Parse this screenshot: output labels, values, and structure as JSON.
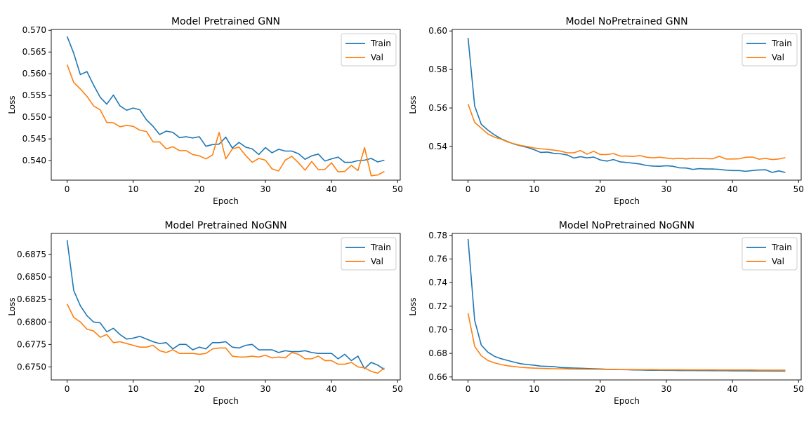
{
  "chart_data": [
    {
      "type": "line",
      "title": "Model Pretrained GNN",
      "xlabel": "Epoch",
      "ylabel": "Loss",
      "xlim": [
        -2.4,
        50.4
      ],
      "ylim": [
        0.5355,
        0.5702
      ],
      "xticks": [
        0,
        10,
        20,
        30,
        40,
        50
      ],
      "yticks": [
        0.54,
        0.545,
        0.55,
        0.555,
        0.56,
        0.565,
        0.57
      ],
      "yticklabels": [
        "0.540",
        "0.545",
        "0.550",
        "0.555",
        "0.560",
        "0.565",
        "0.570"
      ],
      "legend_position": "upper-right",
      "series": [
        {
          "name": "Train",
          "color": "#1f77b4",
          "values": [
            0.5686,
            0.5647,
            0.5598,
            0.5605,
            0.5574,
            0.5546,
            0.553,
            0.5551,
            0.5526,
            0.5516,
            0.5521,
            0.5517,
            0.5494,
            0.5479,
            0.546,
            0.5468,
            0.5465,
            0.5453,
            0.5455,
            0.5452,
            0.5455,
            0.5433,
            0.5437,
            0.5438,
            0.5454,
            0.5429,
            0.5442,
            0.5431,
            0.5427,
            0.5414,
            0.543,
            0.5418,
            0.5426,
            0.5422,
            0.5422,
            0.5416,
            0.5403,
            0.5411,
            0.5415,
            0.5399,
            0.5404,
            0.5408,
            0.5396,
            0.5396,
            0.54,
            0.5401,
            0.5405,
            0.5397,
            0.5401
          ]
        },
        {
          "name": "Val",
          "color": "#ff7f0e",
          "values": [
            0.5621,
            0.558,
            0.5565,
            0.5548,
            0.5526,
            0.5517,
            0.5488,
            0.5487,
            0.5478,
            0.5481,
            0.5479,
            0.547,
            0.5467,
            0.5443,
            0.5443,
            0.5427,
            0.5432,
            0.5423,
            0.5423,
            0.5414,
            0.5411,
            0.5404,
            0.5413,
            0.5465,
            0.5404,
            0.5427,
            0.5431,
            0.5412,
            0.5396,
            0.5405,
            0.5401,
            0.5381,
            0.5376,
            0.5401,
            0.541,
            0.5395,
            0.5378,
            0.5398,
            0.5379,
            0.538,
            0.5395,
            0.5374,
            0.5375,
            0.5389,
            0.5377,
            0.543,
            0.5365,
            0.5367,
            0.5375
          ]
        }
      ]
    },
    {
      "type": "line",
      "title": "Model NoPretrained GNN",
      "xlabel": "Epoch",
      "ylabel": "Loss",
      "xlim": [
        -2.4,
        50.4
      ],
      "ylim": [
        0.5225,
        0.6008
      ],
      "xticks": [
        0,
        10,
        20,
        30,
        40,
        50
      ],
      "yticks": [
        0.54,
        0.56,
        0.58,
        0.6
      ],
      "yticklabels": [
        "0.54",
        "0.56",
        "0.58",
        "0.60"
      ],
      "legend_position": "upper-right",
      "series": [
        {
          "name": "Train",
          "color": "#1f77b4",
          "values": [
            0.5964,
            0.561,
            0.5515,
            0.5485,
            0.546,
            0.544,
            0.5425,
            0.5412,
            0.5403,
            0.5395,
            0.5383,
            0.5369,
            0.5371,
            0.5364,
            0.5362,
            0.5356,
            0.534,
            0.5347,
            0.5341,
            0.5345,
            0.533,
            0.5324,
            0.5332,
            0.532,
            0.5317,
            0.5313,
            0.5309,
            0.5301,
            0.5298,
            0.5297,
            0.53,
            0.5297,
            0.5289,
            0.5288,
            0.5281,
            0.5285,
            0.5283,
            0.5283,
            0.5281,
            0.5277,
            0.5275,
            0.5275,
            0.5271,
            0.5275,
            0.5278,
            0.5279,
            0.5265,
            0.5273,
            0.5265
          ]
        },
        {
          "name": "Val",
          "color": "#ff7f0e",
          "values": [
            0.562,
            0.5525,
            0.5495,
            0.5465,
            0.5448,
            0.5438,
            0.5423,
            0.5414,
            0.5405,
            0.5399,
            0.5392,
            0.5388,
            0.5385,
            0.5381,
            0.5376,
            0.5367,
            0.5367,
            0.5379,
            0.536,
            0.5375,
            0.5358,
            0.5358,
            0.5363,
            0.535,
            0.535,
            0.5348,
            0.5353,
            0.5344,
            0.5341,
            0.5344,
            0.534,
            0.5336,
            0.5339,
            0.5335,
            0.5339,
            0.5337,
            0.5337,
            0.5336,
            0.5349,
            0.5335,
            0.5335,
            0.5336,
            0.5344,
            0.5345,
            0.5334,
            0.5338,
            0.5332,
            0.5335,
            0.5342
          ]
        }
      ]
    },
    {
      "type": "line",
      "title": "Model Pretrained NoGNN",
      "xlabel": "Epoch",
      "ylabel": "Loss",
      "xlim": [
        -2.4,
        50.4
      ],
      "ylim": [
        0.67355,
        0.68985
      ],
      "xticks": [
        0,
        10,
        20,
        30,
        40,
        50
      ],
      "yticks": [
        0.675,
        0.6775,
        0.68,
        0.6825,
        0.685,
        0.6875
      ],
      "yticklabels": [
        "0.6750",
        "0.6775",
        "0.6800",
        "0.6825",
        "0.6850",
        "0.6875"
      ],
      "legend_position": "upper-right",
      "series": [
        {
          "name": "Train",
          "color": "#1f77b4",
          "values": [
            0.6891,
            0.6835,
            0.6818,
            0.6807,
            0.68,
            0.6799,
            0.6789,
            0.6793,
            0.6786,
            0.6781,
            0.6782,
            0.6784,
            0.6781,
            0.6778,
            0.6776,
            0.6777,
            0.677,
            0.6775,
            0.6775,
            0.6769,
            0.6772,
            0.677,
            0.6777,
            0.6777,
            0.6778,
            0.6772,
            0.6771,
            0.6774,
            0.6775,
            0.6769,
            0.6769,
            0.6769,
            0.6766,
            0.6768,
            0.6767,
            0.6767,
            0.6768,
            0.6766,
            0.6765,
            0.6765,
            0.6765,
            0.6759,
            0.6764,
            0.6757,
            0.6762,
            0.6748,
            0.6755,
            0.6752,
            0.6747
          ]
        },
        {
          "name": "Val",
          "color": "#ff7f0e",
          "values": [
            0.682,
            0.6805,
            0.68,
            0.6792,
            0.679,
            0.6783,
            0.6786,
            0.6777,
            0.6778,
            0.6776,
            0.6774,
            0.6772,
            0.6772,
            0.6774,
            0.6768,
            0.6766,
            0.6769,
            0.6765,
            0.6765,
            0.6765,
            0.6764,
            0.6765,
            0.677,
            0.6771,
            0.6771,
            0.6762,
            0.6761,
            0.6761,
            0.6762,
            0.6761,
            0.6763,
            0.676,
            0.6761,
            0.676,
            0.6766,
            0.6764,
            0.6759,
            0.6759,
            0.6762,
            0.6757,
            0.6757,
            0.6753,
            0.6753,
            0.6755,
            0.675,
            0.6749,
            0.6745,
            0.6743,
            0.6749
          ]
        }
      ]
    },
    {
      "type": "line",
      "title": "Model NoPretrained NoGNN",
      "xlabel": "Epoch",
      "ylabel": "Loss",
      "xlim": [
        -2.4,
        50.4
      ],
      "ylim": [
        0.6575,
        0.7817
      ],
      "xticks": [
        0,
        10,
        20,
        30,
        40,
        50
      ],
      "yticks": [
        0.66,
        0.68,
        0.7,
        0.72,
        0.74,
        0.76,
        0.78
      ],
      "yticklabels": [
        "0.66",
        "0.68",
        "0.70",
        "0.72",
        "0.74",
        "0.76",
        "0.78"
      ],
      "legend_position": "upper-right",
      "series": [
        {
          "name": "Train",
          "color": "#1f77b4",
          "values": [
            0.777,
            0.708,
            0.687,
            0.681,
            0.6775,
            0.6755,
            0.674,
            0.6725,
            0.6712,
            0.6705,
            0.67,
            0.6692,
            0.669,
            0.6688,
            0.668,
            0.6678,
            0.6676,
            0.6674,
            0.6672,
            0.667,
            0.6668,
            0.6665,
            0.6664,
            0.6663,
            0.6662,
            0.666,
            0.6659,
            0.6658,
            0.6657,
            0.6657,
            0.6656,
            0.6656,
            0.6655,
            0.6655,
            0.6655,
            0.6654,
            0.6654,
            0.6653,
            0.6653,
            0.6653,
            0.6652,
            0.6652,
            0.6652,
            0.6651,
            0.6651,
            0.6651,
            0.665,
            0.665,
            0.665
          ]
        },
        {
          "name": "Val",
          "color": "#ff7f0e",
          "values": [
            0.714,
            0.686,
            0.678,
            0.674,
            0.672,
            0.6705,
            0.6695,
            0.6688,
            0.6682,
            0.6678,
            0.6675,
            0.6673,
            0.6671,
            0.667,
            0.6669,
            0.6668,
            0.6667,
            0.6667,
            0.6666,
            0.6665,
            0.6665,
            0.6664,
            0.6664,
            0.6663,
            0.6663,
            0.6663,
            0.6662,
            0.6662,
            0.6662,
            0.6661,
            0.6661,
            0.6661,
            0.6661,
            0.666,
            0.666,
            0.666,
            0.666,
            0.666,
            0.6659,
            0.6659,
            0.6659,
            0.6659,
            0.6659,
            0.6659,
            0.6658,
            0.6658,
            0.6658,
            0.6658,
            0.6658
          ]
        }
      ]
    }
  ]
}
